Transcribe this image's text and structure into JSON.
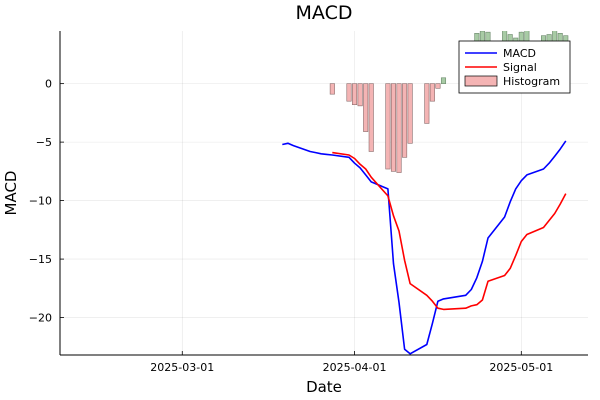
{
  "chart_data": {
    "type": "line",
    "title": "MACD",
    "xlabel": "Date",
    "ylabel": "MACD",
    "xlim": [
      "2025-02-07",
      "2025-05-13"
    ],
    "ylim": [
      -23.2,
      4.5
    ],
    "x_ticks": [
      "2025-03-01",
      "2025-04-01",
      "2025-05-01"
    ],
    "y_ticks": [
      0,
      -5,
      -10,
      -15,
      -20
    ],
    "grid": true,
    "legend_position": "top-right",
    "colors": {
      "macd": "#0000ff",
      "signal": "#ff0000",
      "hist_negative": "#f4b4b4",
      "hist_positive": "#a8cba5",
      "hist_negative_edge": "#8a6a6a",
      "hist_positive_edge": "#6a876a"
    },
    "series": [
      {
        "name": "MACD",
        "style": "line",
        "x": [
          "2025-03-19",
          "2025-03-20",
          "2025-03-21",
          "2025-03-24",
          "2025-03-25",
          "2025-03-26",
          "2025-03-27",
          "2025-03-28",
          "2025-03-31",
          "2025-04-01",
          "2025-04-02",
          "2025-04-03",
          "2025-04-04",
          "2025-04-07",
          "2025-04-08",
          "2025-04-09",
          "2025-04-10",
          "2025-04-11",
          "2025-04-14",
          "2025-04-15",
          "2025-04-16",
          "2025-04-17",
          "2025-04-21",
          "2025-04-22",
          "2025-04-23",
          "2025-04-24",
          "2025-04-25",
          "2025-04-28",
          "2025-04-29",
          "2025-04-30",
          "2025-05-01",
          "2025-05-02",
          "2025-05-05",
          "2025-05-06",
          "2025-05-07",
          "2025-05-08",
          "2025-05-09"
        ],
        "values": [
          -5.2,
          -5.1,
          -5.3,
          -5.8,
          -5.9,
          -6.0,
          -6.05,
          -6.1,
          -6.3,
          -6.8,
          -7.2,
          -7.8,
          -8.4,
          -9.0,
          -15.4,
          -18.7,
          -22.7,
          -23.1,
          -22.3,
          -20.5,
          -18.6,
          -18.4,
          -18.1,
          -17.6,
          -16.6,
          -15.2,
          -13.2,
          -11.4,
          -10.1,
          -9.0,
          -8.3,
          -7.8,
          -7.3,
          -6.8,
          -6.2,
          -5.6,
          -4.9
        ]
      },
      {
        "name": "Signal",
        "style": "line",
        "x": [
          "2025-03-28",
          "2025-03-31",
          "2025-04-01",
          "2025-04-02",
          "2025-04-03",
          "2025-04-04",
          "2025-04-07",
          "2025-04-08",
          "2025-04-09",
          "2025-04-10",
          "2025-04-11",
          "2025-04-14",
          "2025-04-15",
          "2025-04-16",
          "2025-04-17",
          "2025-04-21",
          "2025-04-22",
          "2025-04-23",
          "2025-04-24",
          "2025-04-25",
          "2025-04-28",
          "2025-04-29",
          "2025-04-30",
          "2025-05-01",
          "2025-05-02",
          "2025-05-05",
          "2025-05-06",
          "2025-05-07",
          "2025-05-08",
          "2025-05-09"
        ],
        "values": [
          -5.9,
          -6.1,
          -6.4,
          -6.9,
          -7.3,
          -8.0,
          -9.6,
          -11.3,
          -12.6,
          -15.1,
          -17.1,
          -18.1,
          -18.6,
          -19.2,
          -19.3,
          -19.2,
          -19.0,
          -18.9,
          -18.5,
          -16.9,
          -16.4,
          -15.8,
          -14.7,
          -13.5,
          -12.9,
          -12.3,
          -11.7,
          -11.1,
          -10.3,
          -9.4
        ]
      },
      {
        "name": "Histogram",
        "style": "bar",
        "x": [
          "2025-03-28",
          "2025-03-31",
          "2025-04-01",
          "2025-04-02",
          "2025-04-03",
          "2025-04-04",
          "2025-04-07",
          "2025-04-08",
          "2025-04-09",
          "2025-04-10",
          "2025-04-11",
          "2025-04-14",
          "2025-04-15",
          "2025-04-16",
          "2025-04-17",
          "2025-04-21",
          "2025-04-22",
          "2025-04-23",
          "2025-04-24",
          "2025-04-25",
          "2025-04-28",
          "2025-04-29",
          "2025-04-30",
          "2025-05-01",
          "2025-05-02",
          "2025-05-05",
          "2025-05-06",
          "2025-05-07",
          "2025-05-08",
          "2025-05-09"
        ],
        "values": [
          -0.9,
          -1.5,
          -1.8,
          -1.9,
          -4.1,
          -5.8,
          -7.3,
          -7.5,
          -7.6,
          -6.3,
          -5.1,
          -3.4,
          -1.5,
          -0.4,
          0.5,
          1.7,
          3.3,
          4.3,
          4.5,
          4.4,
          4.6,
          4.2,
          3.9,
          4.4,
          4.6,
          4.1,
          4.2,
          4.6,
          4.3,
          4.1
        ]
      }
    ]
  }
}
